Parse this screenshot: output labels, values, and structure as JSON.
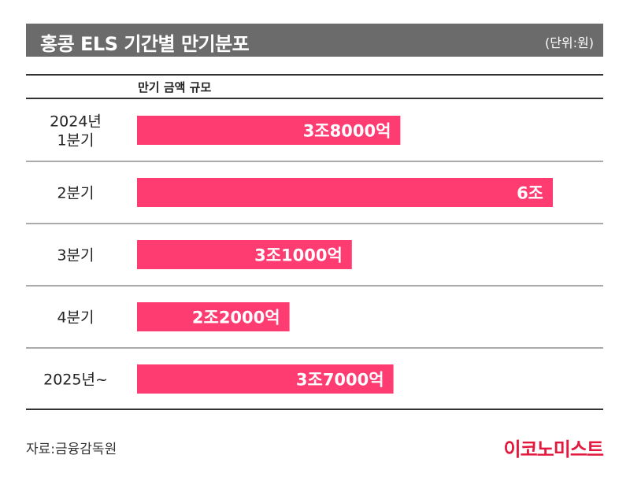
{
  "header": {
    "title": "홍콩 ELS 기간별 만기분포",
    "unit": "(단위:원)"
  },
  "column_header": "만기 금액 규모",
  "footer": {
    "source": "자료:금융감독원",
    "logo": "이코노미스트"
  },
  "colors": {
    "bar": "#ff3c72",
    "title_bg": "#6b6b6b",
    "logo": "#e4173d"
  },
  "chart_data": {
    "type": "bar",
    "orientation": "horizontal",
    "title": "홍콩 ELS 기간별 만기분포",
    "unit": "(단위:원)",
    "categories": [
      [
        "2024년",
        "1분기"
      ],
      [
        "2분기"
      ],
      [
        "3분기"
      ],
      [
        "4분기"
      ],
      [
        "2025년~"
      ]
    ],
    "values": [
      3.8,
      6.0,
      3.1,
      2.2,
      3.7
    ],
    "value_unit": "조원",
    "data_labels": [
      "3조8000억",
      "6조",
      "3조1000억",
      "2조2000억",
      "3조7000억"
    ],
    "xlim": [
      0,
      6.0
    ],
    "grid": false,
    "legend": "none"
  }
}
